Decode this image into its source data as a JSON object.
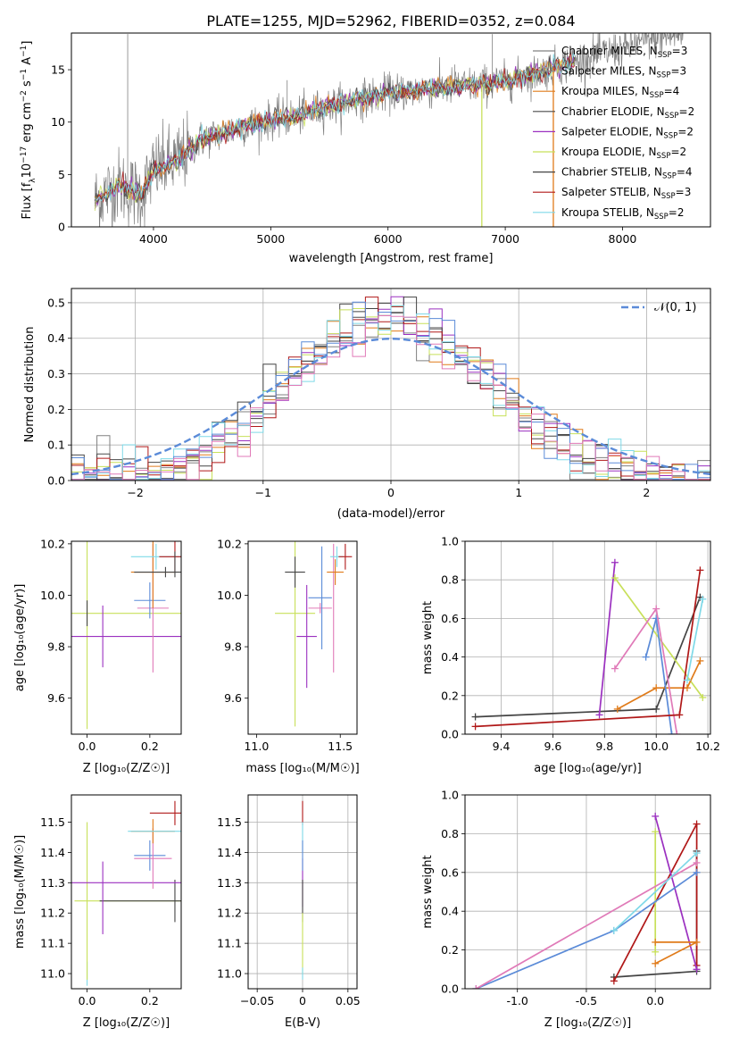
{
  "figure_title": "PLATE=1255, MJD=52962, FIBERID=0352, z=0.084",
  "colors": {
    "Chabrier MILES": "#808080",
    "Salpeter MILES": "#8c8c8c",
    "Kroupa MILES": "#e07b1a",
    "Chabrier ELODIE": "#4a4a4a",
    "Salpeter ELODIE": "#9b30c0",
    "Kroupa ELODIE": "#c8e05a",
    "Chabrier STELIB": "#444444",
    "Salpeter STELIB": "#b01818",
    "Kroupa STELIB": "#7fd9e8",
    "blue": "#5b8bd8",
    "pink": "#e07ab8",
    "gauss": "#5b8bd8"
  },
  "chart_data": [
    {
      "id": "spectrum",
      "type": "line",
      "xlabel": "wavelength [Angstrom, rest frame]",
      "ylabel": "Flux [f_λ10^{-17} erg cm^{-2} s^{-1} A^{-1}]",
      "xlim": [
        3300,
        8750
      ],
      "ylim": [
        0,
        18.5
      ],
      "xticks": [
        4000,
        5000,
        6000,
        7000,
        8000
      ],
      "yticks": [
        0,
        5,
        10,
        15
      ],
      "legend_position": "right",
      "legend": [
        {
          "name": "Chabrier MILES, N_SSP=3",
          "base": "Chabrier MILES, N",
          "sub": "SSP",
          "tail": "=3",
          "color": "#808080"
        },
        {
          "name": "Salpeter MILES, N_SSP=3",
          "base": "Salpeter MILES, N",
          "sub": "SSP",
          "tail": "=3",
          "color": "#8c8c8c"
        },
        {
          "name": "Kroupa MILES, N_SSP=4",
          "base": "Kroupa MILES, N",
          "sub": "SSP",
          "tail": "=4",
          "color": "#e07b1a"
        },
        {
          "name": "Chabrier ELODIE, N_SSP=2",
          "base": "Chabrier ELODIE, N",
          "sub": "SSP",
          "tail": "=2",
          "color": "#4a4a4a"
        },
        {
          "name": "Salpeter ELODIE, N_SSP=2",
          "base": "Salpeter ELODIE, N",
          "sub": "SSP",
          "tail": "=2",
          "color": "#9b30c0"
        },
        {
          "name": "Kroupa ELODIE, N_SSP=2",
          "base": "Kroupa ELODIE, N",
          "sub": "SSP",
          "tail": "=2",
          "color": "#c8e05a"
        },
        {
          "name": "Chabrier STELIB, N_SSP=4",
          "base": "Chabrier STELIB, N",
          "sub": "SSP",
          "tail": "=4",
          "color": "#444444"
        },
        {
          "name": "Salpeter STELIB, N_SSP=3",
          "base": "Salpeter STELIB, N",
          "sub": "SSP",
          "tail": "=3",
          "color": "#b01818"
        },
        {
          "name": "Kroupa STELIB, N_SSP=2",
          "base": "Kroupa STELIB, N",
          "sub": "SSP",
          "tail": "=2",
          "color": "#7fd9e8"
        }
      ],
      "continuum": {
        "x": [
          3500,
          3700,
          3900,
          4000,
          4200,
          4400,
          4600,
          4800,
          5000,
          5200,
          5400,
          5600,
          5800,
          6000,
          6200,
          6400,
          6600,
          6800,
          7000,
          7200,
          7400,
          7600,
          7800,
          8000,
          8200,
          8400,
          8500
        ],
        "y": [
          2.5,
          4.0,
          3.0,
          5.5,
          6.3,
          8.3,
          9.0,
          9.7,
          10.2,
          10.5,
          11.2,
          11.8,
          12.3,
          12.8,
          13.0,
          13.2,
          13.4,
          13.6,
          13.9,
          14.4,
          15.2,
          15.8,
          16.5,
          17.0,
          17.8,
          18.2,
          18.3
        ]
      },
      "emission_spikes": [
        [
          3780,
          18.4
        ],
        [
          5140,
          14.0
        ],
        [
          6890,
          18.4
        ],
        [
          6570,
          15.5
        ]
      ],
      "model_drops": [
        [
          6800,
          "#c8e05a"
        ],
        [
          7410,
          "#e07b1a"
        ]
      ]
    },
    {
      "id": "residuals",
      "type": "histogram",
      "xlabel": "(data-model)/error",
      "ylabel": "Normed distribution",
      "xlim": [
        -2.5,
        2.5
      ],
      "ylim": [
        0,
        0.54
      ],
      "xticks": [
        -2,
        -1,
        0,
        1,
        2
      ],
      "yticks": [
        0.0,
        0.1,
        0.2,
        0.3,
        0.4,
        0.5
      ],
      "grid": true,
      "legend_position": "top-right",
      "gauss_label": "𝒩(0, 1)",
      "bin_width": 0.1
    },
    {
      "id": "age-vs-Z",
      "type": "errorbar",
      "xlabel": "Z [log₁₀(Z/Z☉)]",
      "ylabel": "age  [log₁₀(age/yr)]",
      "xlim": [
        -0.05,
        0.3
      ],
      "ylim": [
        9.46,
        10.21
      ],
      "xticks": [
        0.0,
        0.2
      ],
      "yticks": [
        9.6,
        9.8,
        10.0,
        10.2
      ]
    },
    {
      "id": "age-vs-mass",
      "type": "errorbar",
      "xlabel": "mass [log₁₀(M/M☉)]",
      "ylabel": "",
      "xlim": [
        10.95,
        11.6
      ],
      "ylim": [
        9.46,
        10.21
      ],
      "xticks": [
        11.0,
        11.5
      ],
      "yticks": [
        9.6,
        9.8,
        10.0,
        10.2
      ]
    },
    {
      "id": "weight-vs-age",
      "type": "line",
      "xlabel": "age  [log₁₀(age/yr)]",
      "ylabel": "mass weight",
      "xlim": [
        9.26,
        10.21
      ],
      "ylim": [
        0,
        1.0
      ],
      "xticks": [
        9.4,
        9.6,
        9.8,
        10.0,
        10.2
      ],
      "yticks": [
        0.0,
        0.2,
        0.4,
        0.6,
        0.8,
        1.0
      ],
      "grid": true,
      "series": [
        {
          "color": "#444444",
          "x": [
            9.3,
            10.0,
            10.17
          ],
          "y": [
            0.09,
            0.13,
            0.71
          ]
        },
        {
          "color": "#9b30c0",
          "x": [
            9.78,
            9.84
          ],
          "y": [
            0.1,
            0.89
          ]
        },
        {
          "color": "#c8e05a",
          "x": [
            9.84,
            10.18
          ],
          "y": [
            0.81,
            0.19
          ]
        },
        {
          "color": "#e07b1a",
          "x": [
            9.85,
            10.0,
            10.12,
            10.17
          ],
          "y": [
            0.13,
            0.24,
            0.24,
            0.38
          ]
        },
        {
          "color": "#5b8bd8",
          "x": [
            9.96,
            10.0,
            10.06
          ],
          "y": [
            0.4,
            0.6,
            0.0
          ]
        },
        {
          "color": "#e07ab8",
          "x": [
            9.84,
            10.0,
            10.08
          ],
          "y": [
            0.34,
            0.65,
            0.0
          ]
        },
        {
          "color": "#b01818",
          "x": [
            9.3,
            10.09,
            10.17
          ],
          "y": [
            0.04,
            0.1,
            0.85
          ]
        },
        {
          "color": "#7fd9e8",
          "x": [
            10.12,
            10.18
          ],
          "y": [
            0.28,
            0.7
          ]
        }
      ]
    },
    {
      "id": "mass-vs-Z",
      "type": "errorbar",
      "xlabel": "Z [log₁₀(Z/Z☉)]",
      "ylabel": "mass [log₁₀(M/M☉)]",
      "xlim": [
        -0.05,
        0.3
      ],
      "ylim": [
        10.95,
        11.59
      ],
      "xticks": [
        0.0,
        0.2
      ],
      "yticks": [
        11.0,
        11.1,
        11.2,
        11.3,
        11.4,
        11.5
      ]
    },
    {
      "id": "mass-vs-ebv",
      "type": "errorbar",
      "xlabel": "E(B-V)",
      "ylabel": "",
      "xlim": [
        -0.06,
        0.06
      ],
      "ylim": [
        10.95,
        11.59
      ],
      "xticks": [
        -0.05,
        0.0,
        0.05
      ],
      "yticks": [
        11.0,
        11.1,
        11.2,
        11.3,
        11.4,
        11.5
      ],
      "grid": true
    },
    {
      "id": "weight-vs-Z",
      "type": "line",
      "xlabel": "Z [log₁₀(Z/Z☉)]",
      "ylabel": "mass weight",
      "xlim": [
        -1.38,
        0.4
      ],
      "ylim": [
        0,
        1.0
      ],
      "xticks": [
        -1.0,
        -0.5,
        0.0
      ],
      "yticks": [
        0.0,
        0.2,
        0.4,
        0.6,
        0.8,
        1.0
      ],
      "grid": true,
      "series": [
        {
          "color": "#444444",
          "x": [
            -0.3,
            0.3,
            0.3
          ],
          "y": [
            0.06,
            0.09,
            0.71
          ]
        },
        {
          "color": "#b01818",
          "x": [
            -0.3,
            0.3,
            0.3
          ],
          "y": [
            0.04,
            0.85,
            0.12
          ]
        },
        {
          "color": "#9b30c0",
          "x": [
            0.0,
            0.3
          ],
          "y": [
            0.89,
            0.1
          ]
        },
        {
          "color": "#c8e05a",
          "x": [
            0.0,
            0.0
          ],
          "y": [
            0.81,
            0.19
          ]
        },
        {
          "color": "#e07b1a",
          "x": [
            0.0,
            0.3,
            0.0
          ],
          "y": [
            0.13,
            0.24,
            0.24
          ]
        },
        {
          "color": "#5b8bd8",
          "x": [
            -1.3,
            -0.3,
            0.3
          ],
          "y": [
            0.0,
            0.3,
            0.6
          ]
        },
        {
          "color": "#e07ab8",
          "x": [
            -1.3,
            0.3
          ],
          "y": [
            0.0,
            0.65
          ]
        },
        {
          "color": "#7fd9e8",
          "x": [
            -0.3,
            0.3
          ],
          "y": [
            0.3,
            0.7
          ]
        }
      ]
    }
  ]
}
